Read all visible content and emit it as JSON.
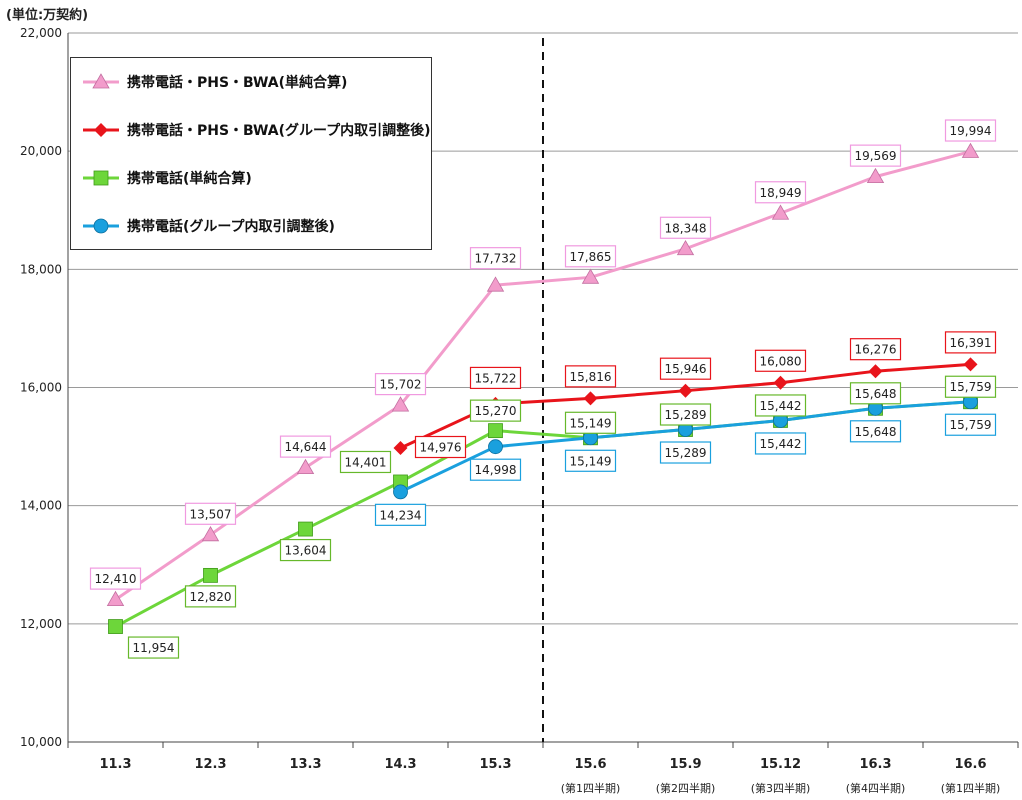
{
  "unit_label": "(単位:万契約)",
  "chart_data": {
    "type": "line",
    "title": "",
    "xlabel": "",
    "ylabel": "",
    "categories": [
      "11.3",
      "12.3",
      "13.3",
      "14.3",
      "15.3",
      "15.6",
      "15.9",
      "15.12",
      "16.3",
      "16.6"
    ],
    "sub_labels": [
      "",
      "",
      "",
      "",
      "",
      "(第1四半期)",
      "(第2四半期)",
      "(第3四半期)",
      "(第4四半期)",
      "(第1四半期)"
    ],
    "ylim": [
      10000,
      22000
    ],
    "yticks": [
      10000,
      12000,
      14000,
      16000,
      18000,
      20000,
      22000
    ],
    "ytick_labels": [
      "10,000",
      "12,000",
      "14,000",
      "16,000",
      "18,000",
      "20,000",
      "22,000"
    ],
    "grid": true,
    "legend_position": "top-left",
    "divider_after_category": "15.3",
    "series": [
      {
        "name": "携帯電話・PHS・BWA(単純合算)",
        "color": "#f29ccb",
        "label_border": "#f09ae0",
        "marker": "triangle",
        "values": [
          12410,
          13507,
          14644,
          15702,
          17732,
          17865,
          18348,
          18949,
          19569,
          19994
        ],
        "labels": [
          "12,410",
          "13,507",
          "14,644",
          "15,702",
          "17,732",
          "17,865",
          "18,348",
          "18,949",
          "19,569",
          "19,994"
        ]
      },
      {
        "name": "携帯電話・PHS・BWA(グループ内取引調整後)",
        "color": "#e8141b",
        "label_border": "#e8141b",
        "marker": "diamond",
        "values": [
          null,
          null,
          null,
          14976,
          15722,
          15816,
          15946,
          16080,
          16276,
          16391
        ],
        "labels": [
          "",
          "",
          "",
          "14,976",
          "15,722",
          "15,816",
          "15,946",
          "16,080",
          "16,276",
          "16,391"
        ]
      },
      {
        "name": "携帯電話(単純合算)",
        "color": "#6dd63a",
        "label_border": "#66b82b",
        "marker": "square",
        "values": [
          11954,
          12820,
          13604,
          14401,
          15270,
          15149,
          15289,
          15442,
          15648,
          15759
        ],
        "labels": [
          "11,954",
          "12,820",
          "13,604",
          "14,401",
          "15,270",
          "15,149",
          "15,289",
          "15,442",
          "15,648",
          "15,759"
        ]
      },
      {
        "name": "携帯電話(グループ内取引調整後)",
        "color": "#1aa0de",
        "label_border": "#1aa0de",
        "marker": "circle",
        "values": [
          null,
          null,
          null,
          14234,
          14998,
          15149,
          15289,
          15442,
          15648,
          15759
        ],
        "labels": [
          "",
          "",
          "",
          "14,234",
          "14,998",
          "15,149",
          "15,289",
          "15,442",
          "15,648",
          "15,759"
        ]
      }
    ]
  }
}
